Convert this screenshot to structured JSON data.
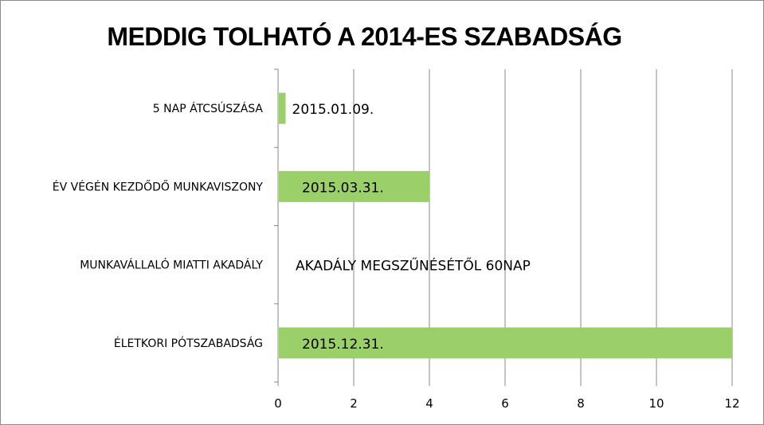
{
  "chart_data": {
    "type": "bar",
    "orientation": "horizontal",
    "title": "MEDDIG TOLHATÓ A 2014-ES SZABADSÁG",
    "xlabel": "",
    "ylabel": "",
    "categories": [
      "5 NAP ÁTCSÚSZÁSA",
      "ÉV VÉGÉN KEZDŐDŐ MUNKAVISZONY",
      "MUNKAVÁLLALÓ MIATTI AKADÁLY",
      "ÉLETKORI PÓTSZABADSÁG"
    ],
    "values": [
      0.2,
      4,
      0,
      12
    ],
    "data_labels": [
      "2015.01.09.",
      "2015.03.31.",
      "AKADÁLY MEGSZŰNÉSÉTŐL 60NAP",
      "2015.12.31."
    ],
    "xlim": [
      0,
      12
    ],
    "xticks": [
      0,
      2,
      4,
      6,
      8,
      10,
      12
    ],
    "grid": "vertical",
    "legend": "none",
    "bar_color": "#9bcf6a",
    "grid_color": "#8a8a8a"
  }
}
